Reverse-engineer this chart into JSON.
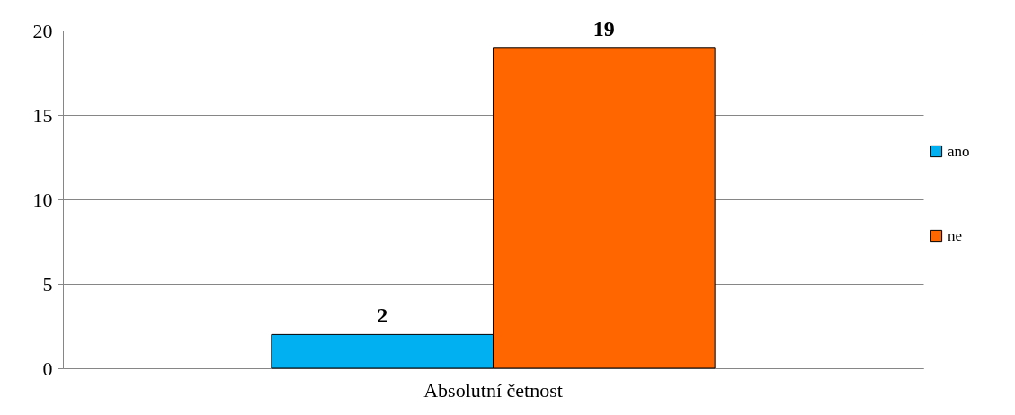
{
  "chart_data": {
    "type": "bar",
    "categories": [
      "Absolutní četnost"
    ],
    "series": [
      {
        "name": "ano",
        "color": "#00b0f0",
        "values": [
          2
        ]
      },
      {
        "name": "ne",
        "color": "#ff6600",
        "values": [
          19
        ]
      }
    ],
    "ylim": [
      0,
      20
    ],
    "yticks": [
      0,
      5,
      10,
      15,
      20
    ],
    "grid": "y",
    "legend": "right",
    "data_labels": true
  }
}
